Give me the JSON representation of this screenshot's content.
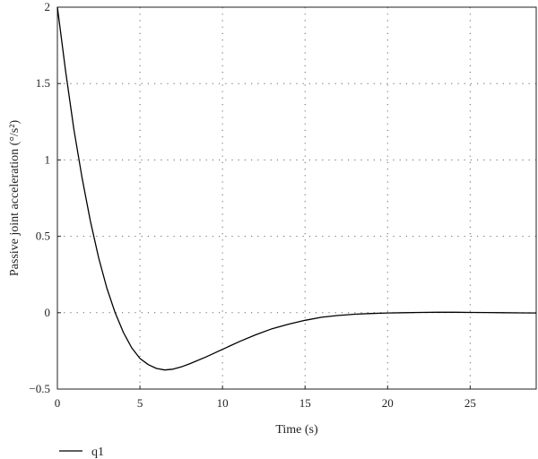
{
  "chart_data": {
    "type": "line",
    "xlabel": "Time (s)",
    "ylabel": "Passive joint acceleration (°/s²)",
    "xlim": [
      0,
      29
    ],
    "ylim": [
      -0.5,
      2
    ],
    "xticks": [
      0,
      5,
      10,
      15,
      20,
      25
    ],
    "yticks": [
      -0.5,
      0,
      0.5,
      1,
      1.5,
      2
    ],
    "xtick_labels": [
      "0",
      "5",
      "10",
      "15",
      "20",
      "25"
    ],
    "ytick_labels": [
      "−0.5",
      "0",
      "0.5",
      "1",
      "1.5",
      "2"
    ],
    "grid": "dotted",
    "legend_position": "bottom-left",
    "series": [
      {
        "name": "q1",
        "color": "#000000",
        "x": [
          0,
          0.5,
          1,
          1.5,
          2,
          2.5,
          3,
          3.5,
          4,
          4.5,
          5,
          5.5,
          6,
          6.5,
          7,
          7.5,
          8,
          9,
          10,
          11,
          12,
          13,
          14,
          15,
          16,
          17,
          18,
          19,
          20,
          21,
          22,
          23,
          24,
          25,
          26,
          27,
          28,
          29
        ],
        "y": [
          2.0,
          1.58,
          1.2,
          0.88,
          0.6,
          0.36,
          0.16,
          0.0,
          -0.13,
          -0.23,
          -0.3,
          -0.34,
          -0.365,
          -0.375,
          -0.37,
          -0.355,
          -0.335,
          -0.29,
          -0.24,
          -0.19,
          -0.145,
          -0.105,
          -0.075,
          -0.05,
          -0.03,
          -0.018,
          -0.01,
          -0.005,
          -0.002,
          0.0,
          0.002,
          0.003,
          0.003,
          0.002,
          0.001,
          0.0,
          -0.001,
          -0.002
        ]
      }
    ]
  }
}
